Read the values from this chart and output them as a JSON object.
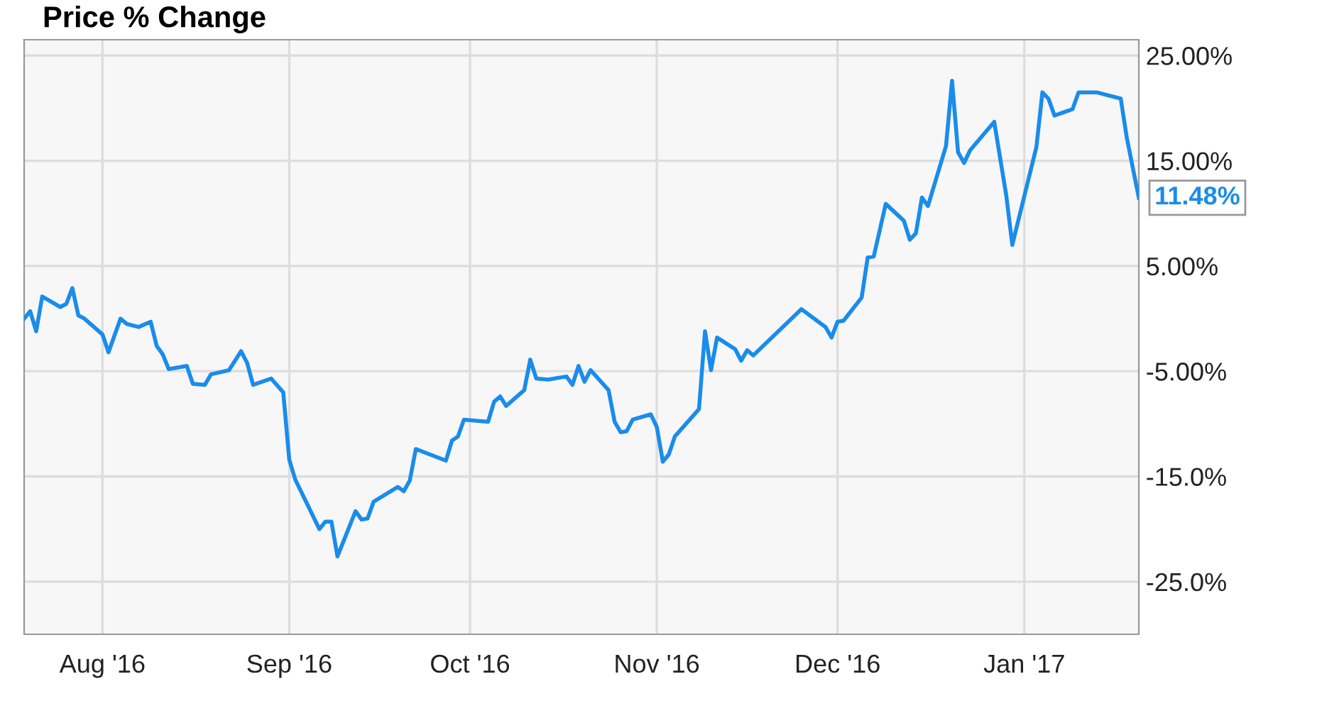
{
  "chart_data": {
    "type": "line",
    "title": "Price % Change",
    "series": [
      {
        "color": "#1a8ceb",
        "x": [
          "2016-07-19",
          "2016-07-20",
          "2016-07-21",
          "2016-07-22",
          "2016-07-25",
          "2016-07-26",
          "2016-07-27",
          "2016-07-28",
          "2016-07-29",
          "2016-08-01",
          "2016-08-02",
          "2016-08-04",
          "2016-08-05",
          "2016-08-07",
          "2016-08-09",
          "2016-08-10",
          "2016-08-11",
          "2016-08-12",
          "2016-08-15",
          "2016-08-16",
          "2016-08-18",
          "2016-08-19",
          "2016-08-22",
          "2016-08-24",
          "2016-08-25",
          "2016-08-26",
          "2016-08-29",
          "2016-08-31",
          "2016-09-01",
          "2016-09-02",
          "2016-09-06",
          "2016-09-07",
          "2016-09-08",
          "2016-09-09",
          "2016-09-12",
          "2016-09-13",
          "2016-09-14",
          "2016-09-15",
          "2016-09-19",
          "2016-09-20",
          "2016-09-21",
          "2016-09-22",
          "2016-09-27",
          "2016-09-28",
          "2016-09-29",
          "2016-09-30",
          "2016-10-04",
          "2016-10-05",
          "2016-10-06",
          "2016-10-07",
          "2016-10-10",
          "2016-10-11",
          "2016-10-12",
          "2016-10-14",
          "2016-10-17",
          "2016-10-18",
          "2016-10-19",
          "2016-10-20",
          "2016-10-21",
          "2016-10-24",
          "2016-10-25",
          "2016-10-26",
          "2016-10-27",
          "2016-10-28",
          "2016-10-31",
          "2016-11-01",
          "2016-11-02",
          "2016-11-03",
          "2016-11-04",
          "2016-11-08",
          "2016-11-09",
          "2016-11-10",
          "2016-11-11",
          "2016-11-14",
          "2016-11-15",
          "2016-11-16",
          "2016-11-17",
          "2016-11-25",
          "2016-11-29",
          "2016-11-30",
          "2016-12-01",
          "2016-12-02",
          "2016-12-05",
          "2016-12-06",
          "2016-12-07",
          "2016-12-09",
          "2016-12-12",
          "2016-12-13",
          "2016-12-14",
          "2016-12-15",
          "2016-12-16",
          "2016-12-19",
          "2016-12-20",
          "2016-12-21",
          "2016-12-22",
          "2016-12-23",
          "2016-12-27",
          "2016-12-29",
          "2016-12-30",
          "2017-01-03",
          "2017-01-04",
          "2017-01-05",
          "2017-01-06",
          "2017-01-09",
          "2017-01-10",
          "2017-01-13",
          "2017-01-17",
          "2017-01-18",
          "2017-01-20"
        ],
        "values": [
          0.0,
          0.7,
          -1.2,
          2.1,
          1.1,
          1.4,
          2.9,
          0.3,
          0.0,
          -1.5,
          -3.2,
          0.0,
          -0.5,
          -0.8,
          -0.3,
          -2.6,
          -3.4,
          -4.8,
          -4.5,
          -6.2,
          -6.3,
          -5.3,
          -4.9,
          -3.1,
          -4.2,
          -6.3,
          -5.7,
          -7.0,
          -13.4,
          -15.3,
          -20.0,
          -19.3,
          -19.3,
          -22.6,
          -18.3,
          -19.1,
          -19.0,
          -17.4,
          -16.0,
          -16.4,
          -15.4,
          -12.4,
          -13.5,
          -11.6,
          -11.2,
          -9.6,
          -9.8,
          -7.9,
          -7.4,
          -8.3,
          -6.8,
          -3.9,
          -5.7,
          -5.8,
          -5.5,
          -6.3,
          -4.5,
          -6.0,
          -4.9,
          -6.8,
          -9.8,
          -10.8,
          -10.7,
          -9.6,
          -9.1,
          -10.3,
          -13.6,
          -12.9,
          -11.2,
          -8.6,
          -1.2,
          -4.9,
          -1.8,
          -2.9,
          -4.0,
          -3.0,
          -3.5,
          0.9,
          -0.8,
          -1.8,
          -0.3,
          -0.2,
          2.0,
          5.8,
          5.9,
          10.9,
          9.3,
          7.5,
          8.1,
          11.5,
          10.7,
          16.4,
          22.6,
          15.8,
          14.8,
          16.0,
          18.7,
          11.7,
          7.0,
          16.3,
          21.5,
          20.9,
          19.3,
          19.9,
          21.5,
          21.5,
          20.9,
          17.2,
          11.48
        ]
      }
    ],
    "annotations": [
      {
        "text": "11.48%",
        "x": "2017-01-20",
        "y": 11.48
      }
    ],
    "xlim": [
      "2016-07-19",
      "2017-01-20"
    ],
    "xticks": [
      {
        "value": "2016-08-01",
        "label": "Aug '16"
      },
      {
        "value": "2016-09-01",
        "label": "Sep '16"
      },
      {
        "value": "2016-10-01",
        "label": "Oct '16"
      },
      {
        "value": "2016-11-01",
        "label": "Nov '16"
      },
      {
        "value": "2016-12-01",
        "label": "Dec '16"
      },
      {
        "value": "2017-01-01",
        "label": "Jan '17"
      }
    ],
    "ylim": [
      -30,
      26.5
    ],
    "yticks": [
      {
        "value": 25,
        "label": "25.00%"
      },
      {
        "value": 15,
        "label": "15.00%"
      },
      {
        "value": 5,
        "label": "5.00%"
      },
      {
        "value": -5,
        "label": "-5.00%"
      },
      {
        "value": -15,
        "label": "-15.0%"
      },
      {
        "value": -25,
        "label": "-25.0%"
      }
    ],
    "grid": true,
    "legend": false,
    "marker": "none",
    "line_style": "solid"
  }
}
